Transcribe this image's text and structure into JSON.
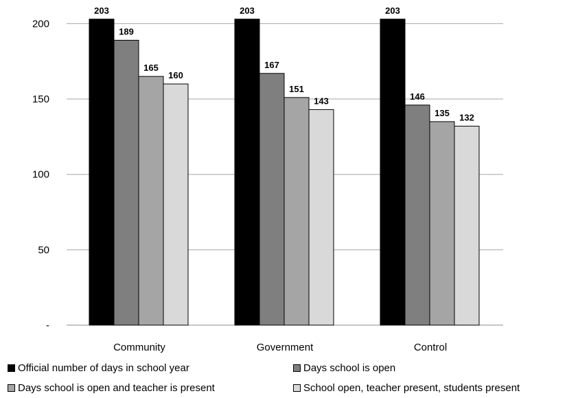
{
  "chart_data": {
    "type": "bar",
    "categories": [
      "Community",
      "Government",
      "Control"
    ],
    "series": [
      {
        "name": "Official number of days in school year",
        "values": [
          203,
          203,
          203
        ],
        "color": "#000000"
      },
      {
        "name": "Days school is open",
        "values": [
          189,
          167,
          146
        ],
        "color": "#7f7f7f"
      },
      {
        "name": "Days school is open and teacher is present",
        "values": [
          165,
          151,
          135
        ],
        "color": "#a5a5a5"
      },
      {
        "name": "School open, teacher present, students present",
        "values": [
          160,
          143,
          132
        ],
        "color": "#d9d9d9"
      }
    ],
    "y_ticks": [
      {
        "value": 0,
        "label": "-"
      },
      {
        "value": 50,
        "label": "50"
      },
      {
        "value": 100,
        "label": "100"
      },
      {
        "value": 150,
        "label": "150"
      },
      {
        "value": 200,
        "label": "200"
      }
    ],
    "ylim": [
      0,
      203
    ],
    "grid": true,
    "data_labels": true,
    "legend_position": "bottom",
    "title": "",
    "xlabel": "",
    "ylabel": ""
  }
}
